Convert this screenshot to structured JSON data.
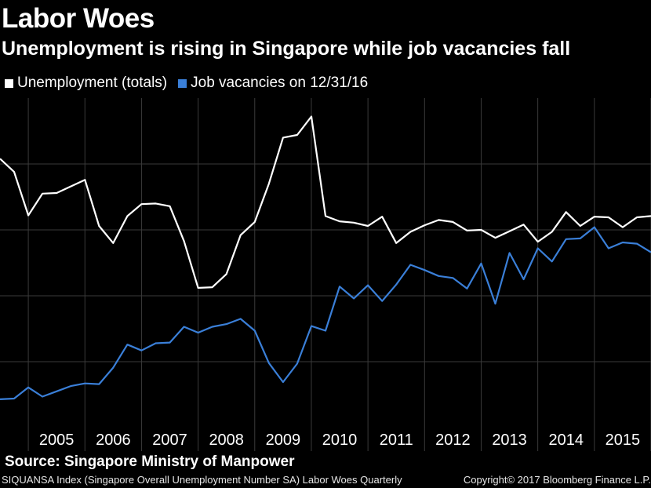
{
  "header": {
    "title": "Labor Woes",
    "subtitle": "Unemployment is rising in Singapore while job vacancies fall"
  },
  "legend": {
    "unemployment_label": "Unemployment (totals)",
    "vacancies_label": "Job vacancies on 12/31/16"
  },
  "footer": {
    "source": "Source: Singapore Ministry of Manpower",
    "index_note": "SIQUANSA Index (Singapore Overall Unemployment Number SA) Labor Woes  Quarterly",
    "copyright": "Copyright© 2017 Bloomberg Finance L.P."
  },
  "colors": {
    "background": "#000000",
    "unemployment": "#ffffff",
    "vacancies": "#3a7fd8",
    "grid": "#3a3a3a"
  },
  "chart_data": {
    "type": "line",
    "title": "Labor Woes",
    "subtitle": "Unemployment is rising in Singapore while job vacancies fall",
    "x_tick_labels": [
      "2005",
      "2006",
      "2007",
      "2008",
      "2009",
      "2010",
      "2011",
      "2012",
      "2013",
      "2014",
      "2015"
    ],
    "xlim": [
      2004.0,
      2015.5
    ],
    "ylim": [
      0,
      5
    ],
    "y_gridlines": [
      1,
      2,
      3,
      4
    ],
    "grid": true,
    "legend_position": "top-left",
    "series": [
      {
        "name": "Unemployment (totals)",
        "color": "#ffffff",
        "x": [
          2004.0,
          2004.25,
          2004.5,
          2004.75,
          2005.0,
          2005.25,
          2005.5,
          2005.75,
          2006.0,
          2006.25,
          2006.5,
          2006.75,
          2007.0,
          2007.25,
          2007.5,
          2007.75,
          2008.0,
          2008.25,
          2008.5,
          2008.75,
          2009.0,
          2009.25,
          2009.5,
          2009.75,
          2010.0,
          2010.25,
          2010.5,
          2010.75,
          2011.0,
          2011.25,
          2011.5,
          2011.75,
          2012.0,
          2012.25,
          2012.5,
          2012.75,
          2013.0,
          2013.25,
          2013.5,
          2013.75,
          2014.0,
          2014.25,
          2014.5,
          2014.75,
          2015.0,
          2015.25,
          2015.5
        ],
        "values": [
          4.08,
          3.88,
          3.22,
          3.55,
          3.56,
          3.66,
          3.76,
          3.06,
          2.8,
          3.21,
          3.39,
          3.4,
          3.36,
          2.83,
          2.12,
          2.13,
          2.33,
          2.92,
          3.12,
          3.7,
          4.4,
          4.44,
          4.72,
          3.21,
          3.13,
          3.11,
          3.06,
          3.2,
          2.8,
          2.97,
          3.07,
          3.15,
          3.12,
          2.99,
          3.0,
          2.88,
          2.98,
          3.08,
          2.82,
          2.97,
          3.27,
          3.06,
          3.2,
          3.19,
          3.04,
          3.19,
          3.21
        ]
      },
      {
        "name": "Job vacancies on 12/31/16",
        "color": "#3a7fd8",
        "x": [
          2004.0,
          2004.25,
          2004.5,
          2004.75,
          2005.0,
          2005.25,
          2005.5,
          2005.75,
          2006.0,
          2006.25,
          2006.5,
          2006.75,
          2007.0,
          2007.25,
          2007.5,
          2007.75,
          2008.0,
          2008.25,
          2008.5,
          2008.75,
          2009.0,
          2009.25,
          2009.5,
          2009.75,
          2010.0,
          2010.25,
          2010.5,
          2010.75,
          2011.0,
          2011.25,
          2011.5,
          2011.75,
          2012.0,
          2012.25,
          2012.5,
          2012.75,
          2013.0,
          2013.25,
          2013.5,
          2013.75,
          2014.0,
          2014.25,
          2014.5,
          2014.75,
          2015.0,
          2015.25,
          2015.5
        ],
        "values": [
          0.43,
          0.44,
          0.61,
          0.47,
          0.55,
          0.63,
          0.67,
          0.66,
          0.91,
          1.26,
          1.17,
          1.28,
          1.29,
          1.53,
          1.44,
          1.53,
          1.57,
          1.65,
          1.47,
          0.98,
          0.69,
          0.97,
          1.54,
          1.47,
          2.14,
          1.96,
          2.16,
          1.92,
          2.17,
          2.47,
          2.39,
          2.3,
          2.27,
          2.11,
          2.49,
          1.88,
          2.65,
          2.25,
          2.72,
          2.52,
          2.86,
          2.87,
          3.04,
          2.72,
          2.81,
          2.79,
          2.66
        ]
      }
    ]
  }
}
